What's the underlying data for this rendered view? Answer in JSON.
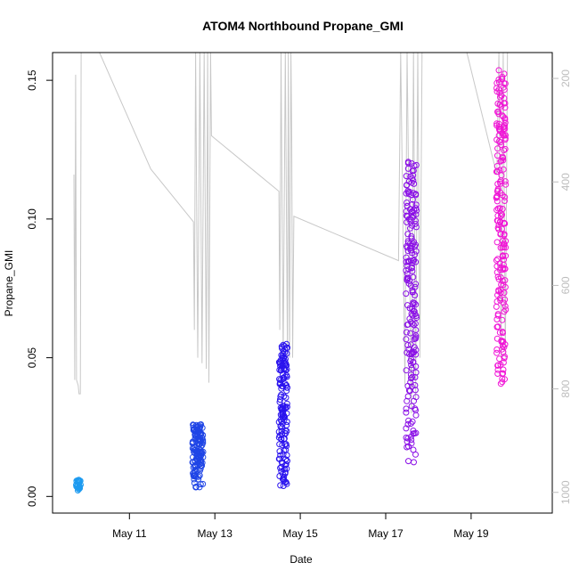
{
  "chart_data": {
    "type": "scatter",
    "title": "ATOM4 Northbound Propane_GMI",
    "xlabel": "Date",
    "ylabel": "Propane_GMI",
    "x_ticks": [
      "May 11",
      "May 13",
      "May 15",
      "May 17",
      "May 19"
    ],
    "x_tick_days": [
      11,
      13,
      15,
      17,
      19
    ],
    "x_range_days": [
      9.2,
      20.9
    ],
    "ylim": [
      -0.006,
      0.16
    ],
    "y_ticks": [
      0.0,
      0.05,
      0.1,
      0.15
    ],
    "y_tick_labels": [
      "0.00",
      "0.05",
      "0.10",
      "0.15"
    ],
    "y2_ticks": [
      200,
      400,
      600,
      800,
      1000
    ],
    "y2_range": [
      150,
      1040
    ],
    "colors": {
      "line": "#c8c8c8",
      "points_day1": "#1e9bf0",
      "points_day2": "#1f45e6",
      "points_day3": "#2a13ee",
      "points_day4": "#8a0fe6",
      "points_day5": "#f015d6"
    },
    "point_clusters": [
      {
        "day": 9.8,
        "spread": 0.12,
        "ymin": 0.002,
        "ymax": 0.006,
        "n": 30,
        "color": "#1e9bf0"
      },
      {
        "day": 12.6,
        "spread": 0.25,
        "ymin": 0.003,
        "ymax": 0.026,
        "n": 140,
        "color": "#1f45e6"
      },
      {
        "day": 14.6,
        "spread": 0.2,
        "ymin": 0.003,
        "ymax": 0.055,
        "n": 150,
        "color": "#2a13ee"
      },
      {
        "day": 17.6,
        "spread": 0.25,
        "ymin": 0.012,
        "ymax": 0.123,
        "n": 200,
        "color": "#8a0fe6"
      },
      {
        "day": 19.7,
        "spread": 0.22,
        "ymin": 0.04,
        "ymax": 0.154,
        "n": 200,
        "color": "#f015d6"
      }
    ],
    "line_path": [
      [
        9.7,
        0.116
      ],
      [
        9.72,
        0.042
      ],
      [
        9.74,
        0.152
      ],
      [
        9.76,
        0.042
      ],
      [
        9.8,
        0.04
      ],
      [
        9.82,
        0.037
      ],
      [
        9.85,
        0.037
      ],
      [
        9.87,
        0.16
      ],
      [
        10.3,
        0.16
      ],
      [
        11.5,
        0.118
      ],
      [
        12.5,
        0.099
      ],
      [
        12.52,
        0.06
      ],
      [
        12.55,
        0.16
      ],
      [
        12.6,
        0.05
      ],
      [
        12.65,
        0.16
      ],
      [
        12.7,
        0.048
      ],
      [
        12.75,
        0.16
      ],
      [
        12.8,
        0.046
      ],
      [
        12.83,
        0.16
      ],
      [
        12.86,
        0.041
      ],
      [
        12.9,
        0.16
      ],
      [
        12.92,
        0.13
      ],
      [
        14.5,
        0.11
      ],
      [
        14.52,
        0.06
      ],
      [
        14.55,
        0.16
      ],
      [
        14.6,
        0.05
      ],
      [
        14.65,
        0.16
      ],
      [
        14.7,
        0.05
      ],
      [
        14.72,
        0.16
      ],
      [
        14.75,
        0.05
      ],
      [
        14.78,
        0.16
      ],
      [
        14.8,
        0.13
      ],
      [
        14.82,
        0.05
      ],
      [
        14.85,
        0.101
      ],
      [
        17.3,
        0.085
      ],
      [
        17.35,
        0.16
      ],
      [
        17.45,
        0.04
      ],
      [
        17.5,
        0.16
      ],
      [
        17.6,
        0.03
      ],
      [
        17.65,
        0.16
      ],
      [
        17.7,
        0.035
      ],
      [
        17.75,
        0.16
      ],
      [
        17.8,
        0.05
      ],
      [
        17.85,
        0.16
      ],
      [
        18.9,
        0.16
      ],
      [
        19.6,
        0.116
      ],
      [
        19.65,
        0.16
      ],
      [
        19.7,
        0.05
      ],
      [
        19.75,
        0.16
      ],
      [
        19.8,
        0.05
      ],
      [
        19.85,
        0.16
      ]
    ]
  }
}
